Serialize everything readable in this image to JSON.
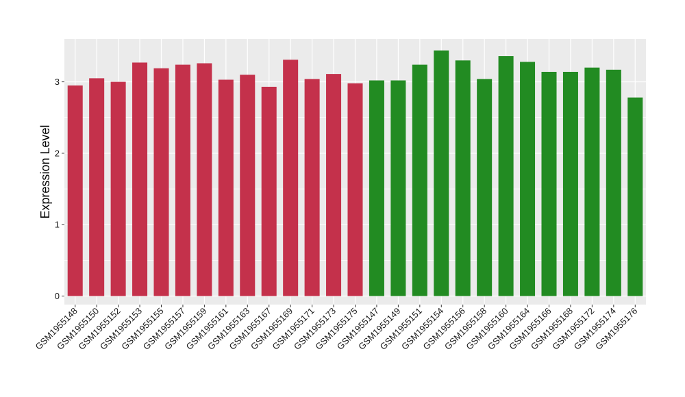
{
  "chart_data": {
    "type": "bar",
    "title": "",
    "xlabel": "",
    "ylabel": "Expression Level",
    "ylim": [
      -0.12,
      3.6
    ],
    "yticks": [
      0,
      1,
      2,
      3
    ],
    "grid": true,
    "legend": "none",
    "categories": [
      "GSM1955148",
      "GSM1955150",
      "GSM1955152",
      "GSM1955153",
      "GSM1955155",
      "GSM1955157",
      "GSM1955159",
      "GSM1955161",
      "GSM1955163",
      "GSM1955167",
      "GSM1955169",
      "GSM1955171",
      "GSM1955173",
      "GSM1955175",
      "GSM1955147",
      "GSM1955149",
      "GSM1955151",
      "GSM1955154",
      "GSM1955156",
      "GSM1955158",
      "GSM1955160",
      "GSM1955164",
      "GSM1955166",
      "GSM1955168",
      "GSM1955172",
      "GSM1955174",
      "GSM1955176"
    ],
    "values": [
      2.95,
      3.05,
      3.0,
      3.27,
      3.19,
      3.24,
      3.26,
      3.03,
      3.1,
      2.93,
      3.31,
      3.04,
      3.11,
      2.98,
      3.02,
      3.02,
      3.24,
      3.44,
      3.3,
      3.04,
      3.36,
      3.28,
      3.14,
      3.14,
      3.2,
      3.17,
      2.78
    ],
    "groups": [
      "red",
      "red",
      "red",
      "red",
      "red",
      "red",
      "red",
      "red",
      "red",
      "red",
      "red",
      "red",
      "red",
      "red",
      "green",
      "green",
      "green",
      "green",
      "green",
      "green",
      "green",
      "green",
      "green",
      "green",
      "green",
      "green",
      "green"
    ],
    "colors": {
      "red": "#C4314B",
      "green": "#228B22",
      "panel": "#EBEBEB",
      "grid": "#FFFFFF",
      "tick": "#333333",
      "text": "#1a1a1a"
    }
  }
}
